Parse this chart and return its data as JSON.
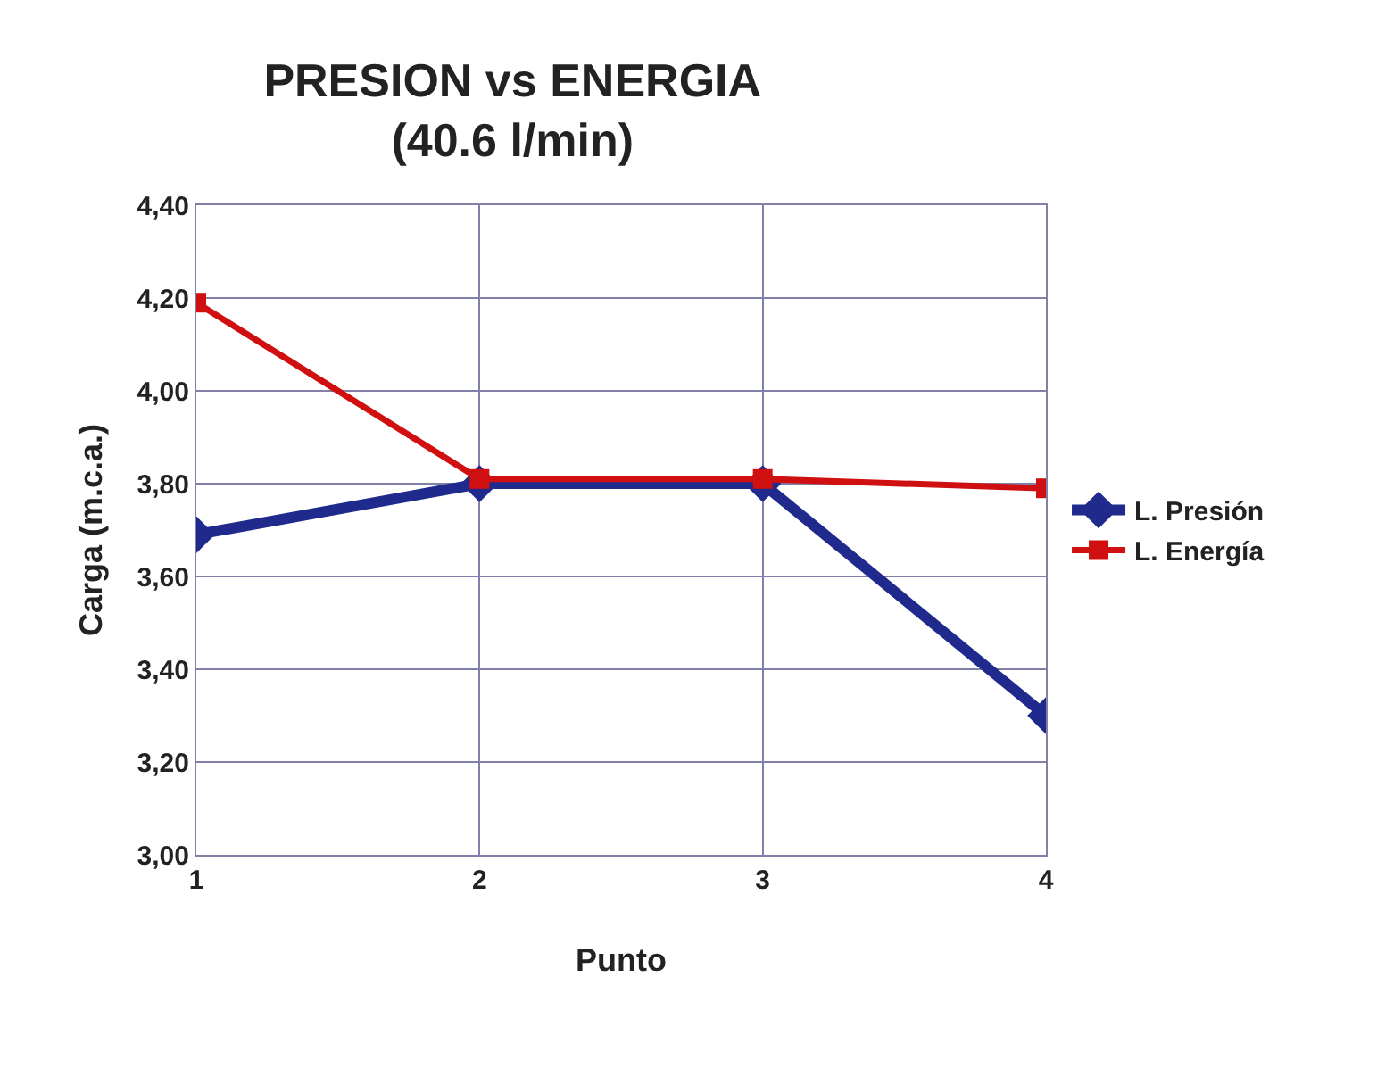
{
  "chart_data": {
    "type": "line",
    "title": "PRESION vs ENERGIA\n(40.6 l/min)",
    "xlabel": "Punto",
    "ylabel": "Carga (m.c.a.)",
    "categories": [
      "1",
      "2",
      "3",
      "4"
    ],
    "series": [
      {
        "name": "L. Presión",
        "color": "#1f2a8c",
        "values": [
          3.69,
          3.8,
          3.8,
          3.3
        ],
        "marker": "diamond"
      },
      {
        "name": "L. Energía",
        "color": "#d01010",
        "values": [
          4.19,
          3.81,
          3.81,
          3.79
        ],
        "marker": "square"
      }
    ],
    "ylim": [
      3.0,
      4.4
    ],
    "yticks": [
      {
        "value": 3.0,
        "label": "3,00"
      },
      {
        "value": 3.2,
        "label": "3,20"
      },
      {
        "value": 3.4,
        "label": "3,40"
      },
      {
        "value": 3.6,
        "label": "3,60"
      },
      {
        "value": 3.8,
        "label": "3,80"
      },
      {
        "value": 4.0,
        "label": "4,00"
      },
      {
        "value": 4.2,
        "label": "4,20"
      },
      {
        "value": 4.4,
        "label": "4,40"
      }
    ],
    "grid": true,
    "legend": "right",
    "line_style": "solid"
  }
}
